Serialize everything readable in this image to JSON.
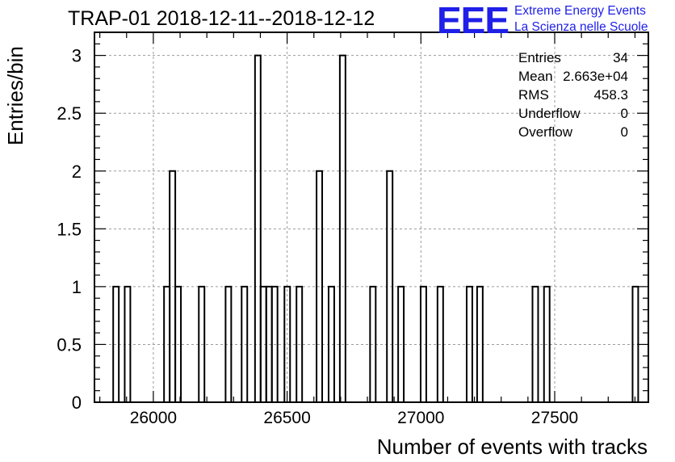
{
  "chart_data": {
    "type": "histogram",
    "title": "TRAP-01 2018-12-11--2018-12-12",
    "xlabel": "Number of events with tracks",
    "ylabel": "Entries/bin",
    "xlim": [
      25780,
      27850
    ],
    "ylim": [
      0,
      3.2
    ],
    "bin_width": 21,
    "x_ticks": [
      26000,
      26500,
      27000,
      27500
    ],
    "y_ticks": [
      0,
      0.5,
      1,
      1.5,
      2,
      2.5,
      3
    ],
    "x_tick_labels": [
      "26000",
      "26500",
      "27000",
      "27500"
    ],
    "y_tick_labels": [
      "0",
      "0.5",
      "1",
      "1.5",
      "2",
      "2.5",
      "3"
    ],
    "grid": true,
    "bins": [
      {
        "x": 25850,
        "count": 1
      },
      {
        "x": 25893,
        "count": 1
      },
      {
        "x": 26040,
        "count": 1
      },
      {
        "x": 26061,
        "count": 2
      },
      {
        "x": 26082,
        "count": 1
      },
      {
        "x": 26170,
        "count": 1
      },
      {
        "x": 26270,
        "count": 1
      },
      {
        "x": 26330,
        "count": 1
      },
      {
        "x": 26380,
        "count": 3
      },
      {
        "x": 26401,
        "count": 1
      },
      {
        "x": 26422,
        "count": 1
      },
      {
        "x": 26443,
        "count": 1
      },
      {
        "x": 26490,
        "count": 1
      },
      {
        "x": 26535,
        "count": 1
      },
      {
        "x": 26610,
        "count": 2
      },
      {
        "x": 26655,
        "count": 1
      },
      {
        "x": 26697,
        "count": 3
      },
      {
        "x": 26810,
        "count": 1
      },
      {
        "x": 26873,
        "count": 2
      },
      {
        "x": 26915,
        "count": 1
      },
      {
        "x": 26999,
        "count": 1
      },
      {
        "x": 27062,
        "count": 1
      },
      {
        "x": 27171,
        "count": 1
      },
      {
        "x": 27210,
        "count": 1
      },
      {
        "x": 27417,
        "count": 1
      },
      {
        "x": 27460,
        "count": 1
      },
      {
        "x": 27791,
        "count": 1
      }
    ],
    "stats": [
      {
        "label": "Entries",
        "value": "34"
      },
      {
        "label": "Mean",
        "value": "2.663e+04"
      },
      {
        "label": "RMS",
        "value": "458.3"
      },
      {
        "label": "Underflow",
        "value": "0"
      },
      {
        "label": "Overflow",
        "value": "0"
      }
    ],
    "logo": {
      "mark": "EEE",
      "line1": "Extreme Energy Events",
      "line2": "La Scienza nelle Scuole",
      "color": "#1f1fe8"
    }
  }
}
